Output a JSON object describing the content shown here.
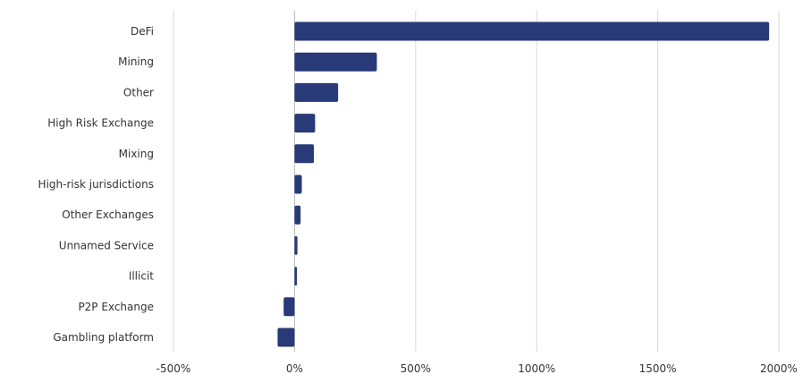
{
  "chart_data": {
    "type": "bar",
    "orientation": "horizontal",
    "categories": [
      "DeFi",
      "Mining",
      "Other",
      "High Risk Exchange",
      "Mixing",
      "High-risk jurisdictions",
      "Other Exchanges",
      "Unnamed Service",
      "Illicit",
      "P2P Exchange",
      "Gambling platform"
    ],
    "values": [
      1960,
      340,
      180,
      85,
      80,
      30,
      25,
      12,
      10,
      -45,
      -70
    ],
    "xlim": [
      -500,
      2000
    ],
    "xticks": [
      -500,
      0,
      500,
      1000,
      1500,
      2000
    ],
    "xtick_labels": [
      "-500%",
      "0%",
      "500%",
      "1000%",
      "1500%",
      "2000%"
    ],
    "grid": "vertical",
    "legend": "none",
    "bar_color": "#283a78",
    "grid_color": "#d9d9d9",
    "zero_line_color": "#b8b8b8"
  }
}
